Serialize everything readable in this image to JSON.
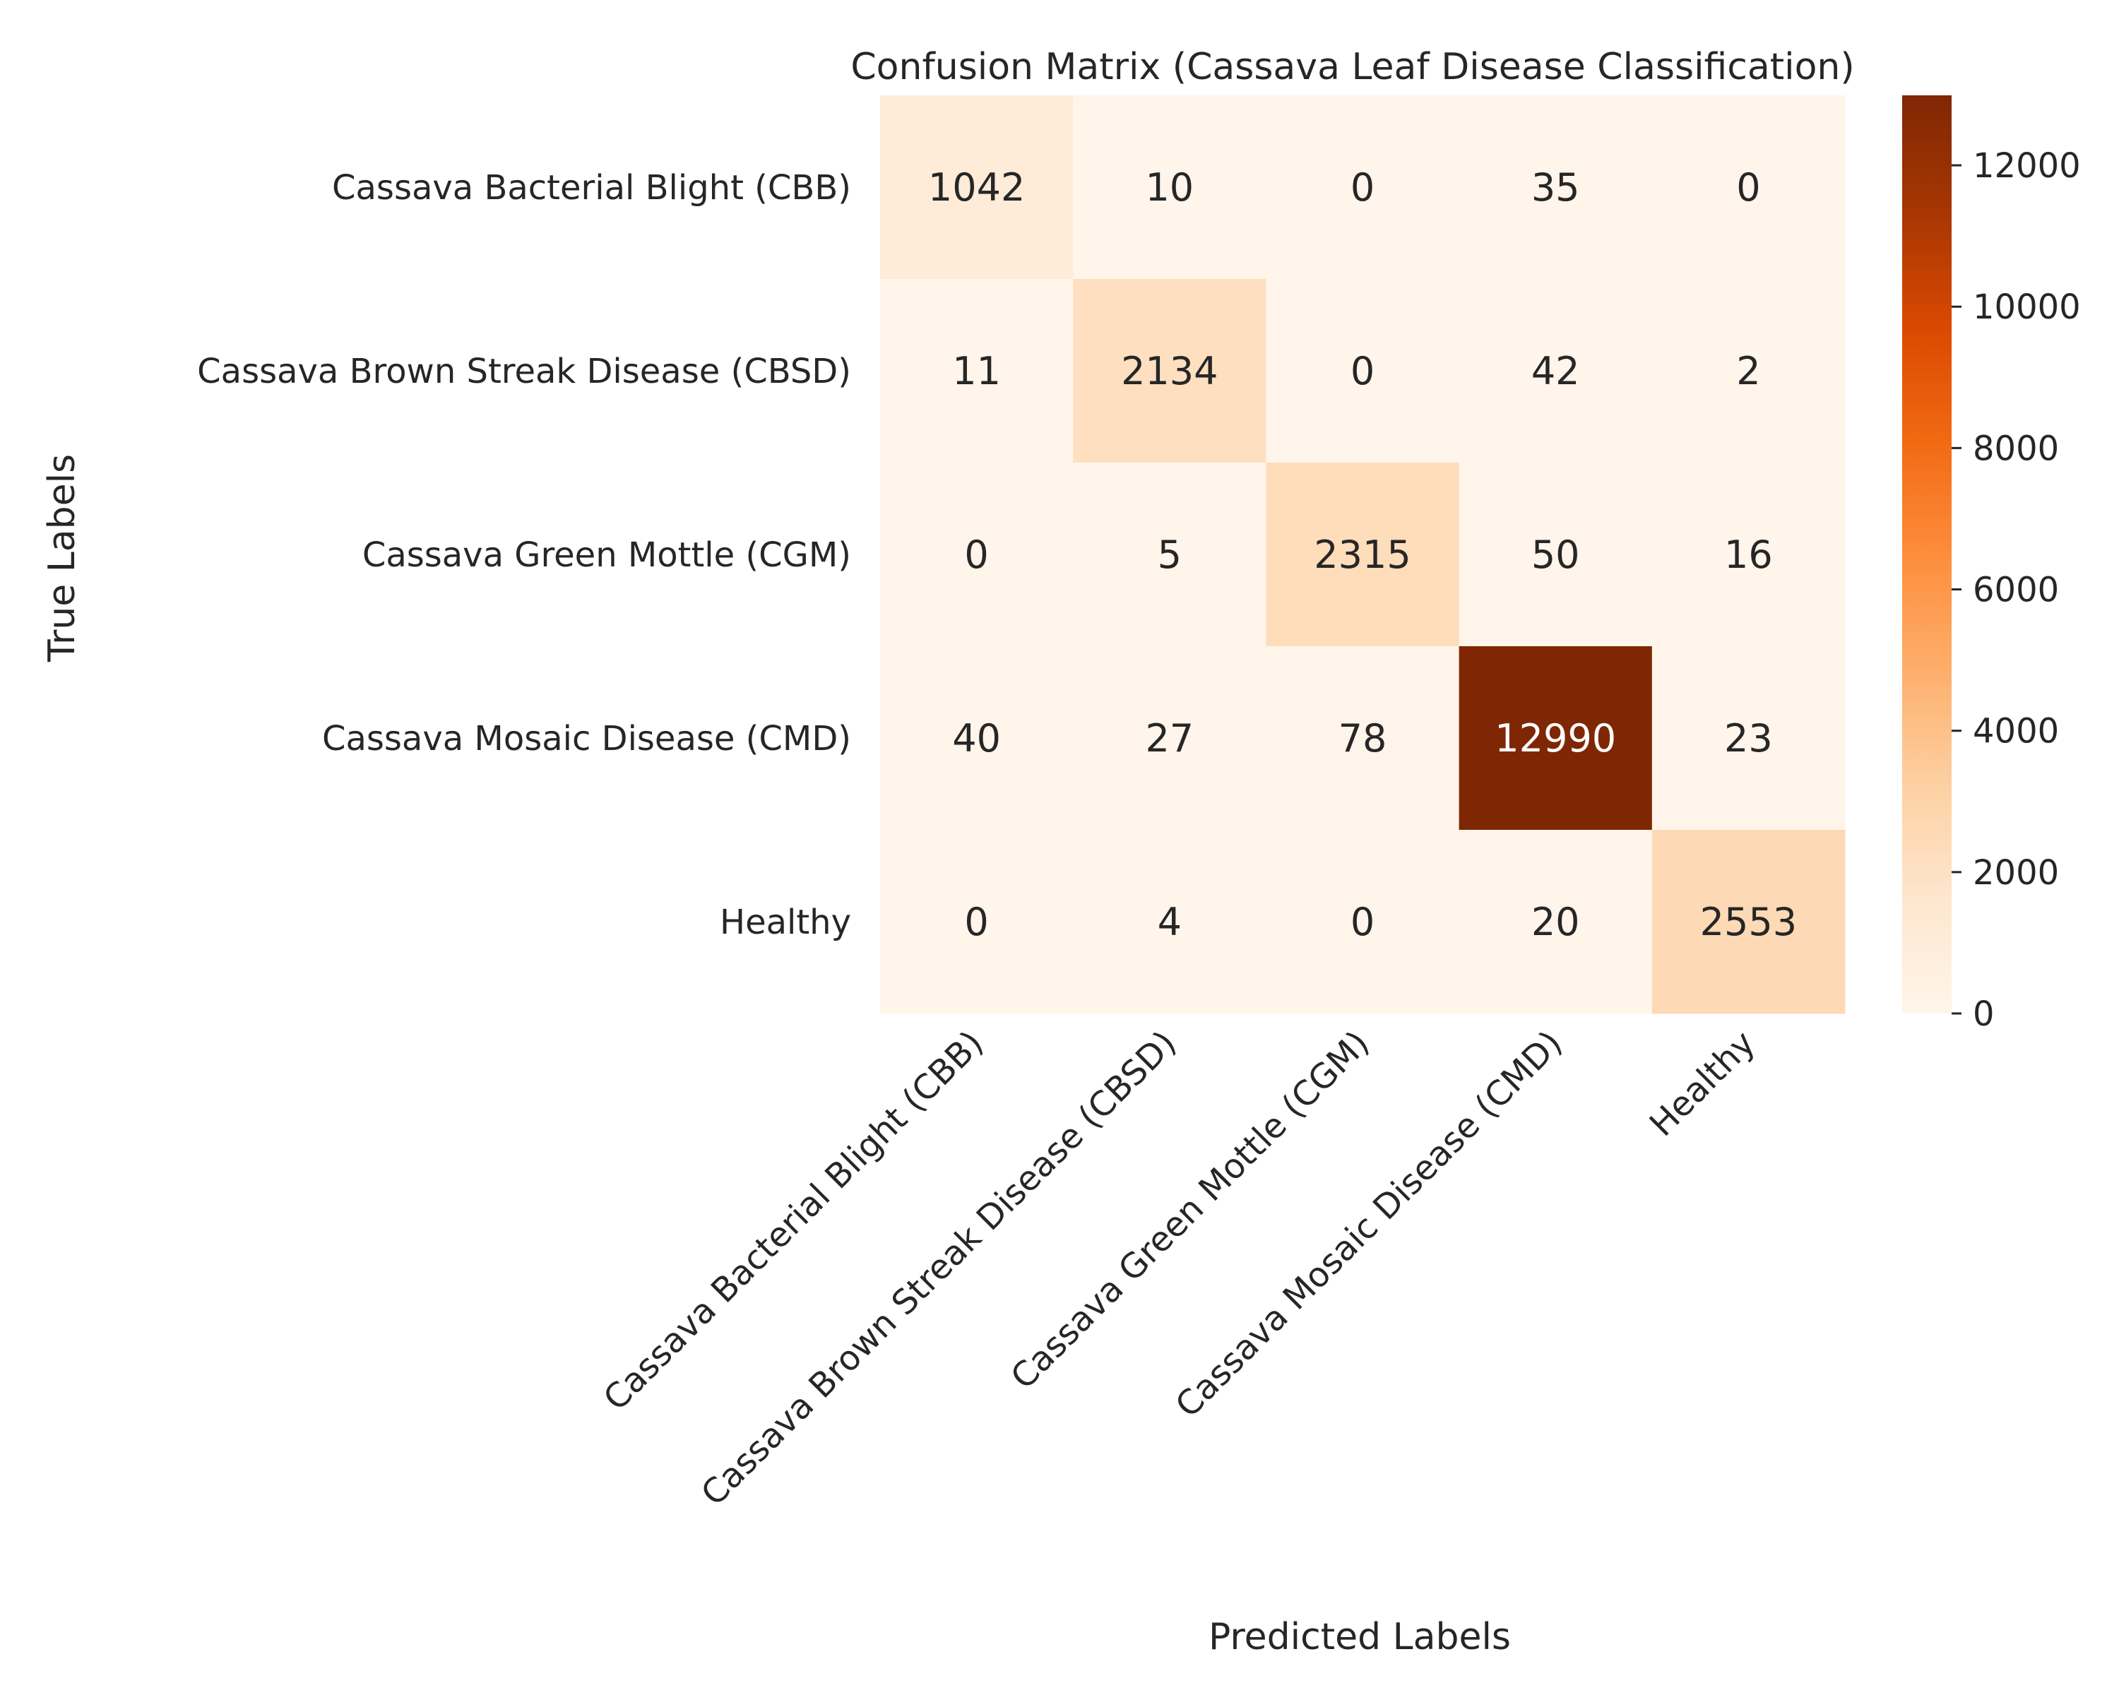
{
  "chart_data": {
    "type": "heatmap",
    "title": "Confusion Matrix (Cassava Leaf Disease Classification)",
    "xlabel": "Predicted Labels",
    "ylabel": "True Labels",
    "x_categories": [
      "Cassava Bacterial Blight (CBB)",
      "Cassava Brown Streak Disease (CBSD)",
      "Cassava Green Mottle (CGM)",
      "Cassava Mosaic Disease (CMD)",
      "Healthy"
    ],
    "y_categories": [
      "Cassava Bacterial Blight (CBB)",
      "Cassava Brown Streak Disease (CBSD)",
      "Cassava Green Mottle (CGM)",
      "Cassava Mosaic Disease (CMD)",
      "Healthy"
    ],
    "values": [
      [
        1042,
        10,
        0,
        35,
        0
      ],
      [
        11,
        2134,
        0,
        42,
        2
      ],
      [
        0,
        5,
        2315,
        50,
        16
      ],
      [
        40,
        27,
        78,
        12990,
        23
      ],
      [
        0,
        4,
        0,
        20,
        2553
      ]
    ],
    "colorbar": {
      "range": [
        0,
        12990
      ],
      "ticks": [
        0,
        2000,
        4000,
        6000,
        8000,
        10000,
        12000
      ],
      "colormap": "Oranges",
      "colors": [
        "#fff5eb",
        "#fee6ce",
        "#fdd0a2",
        "#fdae6b",
        "#fd8d3c",
        "#f16913",
        "#d94801",
        "#a63603",
        "#7f2704"
      ]
    },
    "grid": false
  }
}
